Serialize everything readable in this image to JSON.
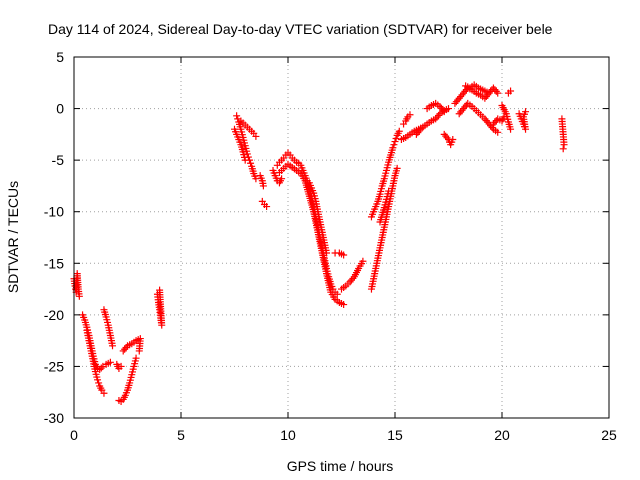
{
  "chart_data": {
    "type": "scatter",
    "title": "Day 114 of 2024, Sidereal Day-to-day VTEC variation (SDTVAR) for receiver bele",
    "xlabel": "GPS time / hours",
    "ylabel": "SDTVAR / TECUs",
    "xlim": [
      0,
      25
    ],
    "ylim": [
      -30,
      5
    ],
    "xticks": [
      0,
      5,
      10,
      15,
      20,
      25
    ],
    "yticks": [
      5,
      0,
      -5,
      -10,
      -15,
      -20,
      -25,
      -30
    ],
    "xtick_labels": [
      "0",
      "5",
      "10",
      "15",
      "20",
      "25"
    ],
    "ytick_labels": [
      "5",
      "0",
      "-5",
      "-10",
      "-15",
      "-20",
      "-25",
      "-30"
    ],
    "grid": true,
    "marker": "+",
    "color": "#ff0000",
    "series": [
      {
        "name": "SDTVAR",
        "segments": [
          [
            [
              0.0,
              -16.5
            ],
            [
              0.05,
              -17.2
            ],
            [
              0.1,
              -17.8
            ],
            [
              0.15,
              -16.0
            ],
            [
              0.2,
              -17.5
            ],
            [
              0.25,
              -18.2
            ]
          ],
          [
            [
              0.4,
              -20.0
            ],
            [
              0.5,
              -20.5
            ],
            [
              0.6,
              -21.2
            ],
            [
              0.7,
              -22.0
            ],
            [
              0.8,
              -23.0
            ],
            [
              0.9,
              -24.0
            ],
            [
              1.0,
              -24.8
            ],
            [
              1.1,
              -25.2
            ],
            [
              1.2,
              -25.3
            ],
            [
              1.35,
              -25.0
            ],
            [
              1.5,
              -24.8
            ],
            [
              1.7,
              -24.6
            ]
          ],
          [
            [
              0.6,
              -21.5
            ],
            [
              0.7,
              -22.5
            ],
            [
              0.8,
              -23.5
            ],
            [
              0.9,
              -24.5
            ],
            [
              1.0,
              -25.5
            ],
            [
              1.1,
              -26.3
            ],
            [
              1.2,
              -26.9
            ],
            [
              1.3,
              -27.3
            ],
            [
              1.4,
              -27.6
            ]
          ],
          [
            [
              1.4,
              -19.5
            ],
            [
              1.5,
              -20.2
            ],
            [
              1.6,
              -21.0
            ],
            [
              1.7,
              -22.0
            ],
            [
              1.8,
              -23.0
            ]
          ],
          [
            [
              2.0,
              -24.8
            ],
            [
              2.1,
              -25.2
            ],
            [
              2.2,
              -25.0
            ]
          ],
          [
            [
              2.1,
              -28.3
            ],
            [
              2.2,
              -28.4
            ],
            [
              2.3,
              -28.2
            ],
            [
              2.4,
              -27.8
            ],
            [
              2.5,
              -27.3
            ],
            [
              2.6,
              -26.6
            ],
            [
              2.7,
              -25.8
            ],
            [
              2.8,
              -25.0
            ],
            [
              2.9,
              -24.2
            ]
          ],
          [
            [
              2.3,
              -23.5
            ],
            [
              2.5,
              -23.0
            ],
            [
              2.7,
              -22.8
            ],
            [
              2.9,
              -22.5
            ],
            [
              3.1,
              -22.3
            ],
            [
              3.05,
              -23.5
            ]
          ],
          [
            [
              3.9,
              -18.0
            ],
            [
              3.95,
              -18.8
            ],
            [
              4.0,
              -19.5
            ],
            [
              4.05,
              -20.3
            ],
            [
              4.1,
              -21.0
            ],
            [
              4.0,
              -17.6
            ]
          ],
          [
            [
              7.6,
              -0.7
            ],
            [
              7.7,
              -1.3
            ],
            [
              7.8,
              -2.0
            ],
            [
              7.9,
              -2.8
            ],
            [
              8.0,
              -3.6
            ],
            [
              8.1,
              -4.4
            ],
            [
              8.2,
              -5.0
            ],
            [
              8.3,
              -5.6
            ],
            [
              8.4,
              -6.3
            ],
            [
              8.5,
              -6.8
            ]
          ],
          [
            [
              7.5,
              -2.0
            ],
            [
              7.6,
              -2.5
            ],
            [
              7.7,
              -3.0
            ],
            [
              7.8,
              -3.5
            ],
            [
              7.9,
              -4.2
            ],
            [
              8.0,
              -5.0
            ]
          ],
          [
            [
              7.8,
              -1.2
            ],
            [
              8.0,
              -1.6
            ],
            [
              8.2,
              -2.0
            ],
            [
              8.4,
              -2.4
            ],
            [
              8.5,
              -2.7
            ]
          ],
          [
            [
              8.7,
              -6.5
            ],
            [
              8.8,
              -7.0
            ],
            [
              8.85,
              -7.5
            ]
          ],
          [
            [
              8.8,
              -9.0
            ],
            [
              8.9,
              -9.3
            ],
            [
              9.0,
              -9.5
            ]
          ],
          [
            [
              9.3,
              -6.0
            ],
            [
              9.4,
              -6.5
            ],
            [
              9.5,
              -7.0
            ],
            [
              9.6,
              -7.2
            ],
            [
              9.7,
              -6.8
            ]
          ],
          [
            [
              9.5,
              -5.5
            ],
            [
              9.6,
              -5.2
            ],
            [
              9.7,
              -5.0
            ],
            [
              9.8,
              -4.8
            ],
            [
              9.9,
              -4.5
            ],
            [
              10.0,
              -4.3
            ],
            [
              10.1,
              -4.5
            ],
            [
              10.2,
              -4.8
            ],
            [
              10.3,
              -5.0
            ],
            [
              10.4,
              -5.2
            ],
            [
              10.5,
              -5.3
            ],
            [
              10.6,
              -5.5
            ],
            [
              10.7,
              -6.0
            ],
            [
              10.8,
              -6.5
            ],
            [
              10.9,
              -7.0
            ],
            [
              11.0,
              -7.8
            ],
            [
              11.1,
              -8.5
            ],
            [
              11.2,
              -9.5
            ],
            [
              11.3,
              -10.5
            ],
            [
              11.4,
              -11.5
            ],
            [
              11.5,
              -12.5
            ],
            [
              11.6,
              -13.5
            ],
            [
              11.7,
              -14.5
            ],
            [
              11.8,
              -15.5
            ],
            [
              11.9,
              -16.3
            ],
            [
              12.0,
              -17.0
            ],
            [
              12.1,
              -17.5
            ],
            [
              12.2,
              -17.8
            ],
            [
              12.3,
              -18.0
            ]
          ],
          [
            [
              9.6,
              -6.2
            ],
            [
              9.8,
              -5.8
            ],
            [
              10.0,
              -5.4
            ],
            [
              10.2,
              -5.7
            ],
            [
              10.4,
              -6.0
            ],
            [
              10.6,
              -6.3
            ],
            [
              10.8,
              -7.0
            ],
            [
              11.0,
              -8.5
            ],
            [
              11.2,
              -10.0
            ],
            [
              11.4,
              -12.0
            ],
            [
              11.6,
              -14.0
            ],
            [
              11.8,
              -16.0
            ],
            [
              12.0,
              -17.8
            ],
            [
              12.2,
              -18.5
            ],
            [
              12.4,
              -18.8
            ],
            [
              12.6,
              -19.0
            ]
          ],
          [
            [
              11.0,
              -7.2
            ],
            [
              11.1,
              -7.7
            ],
            [
              11.2,
              -8.2
            ],
            [
              11.3,
              -9.0
            ],
            [
              11.4,
              -10.0
            ],
            [
              11.5,
              -11.0
            ],
            [
              11.6,
              -12.0
            ],
            [
              11.7,
              -13.0
            ],
            [
              11.8,
              -14.0
            ]
          ],
          [
            [
              12.2,
              -14.0
            ],
            [
              12.4,
              -14.0
            ],
            [
              12.6,
              -14.2
            ]
          ],
          [
            [
              12.5,
              -17.5
            ],
            [
              12.7,
              -17.2
            ],
            [
              12.9,
              -16.8
            ],
            [
              13.1,
              -16.3
            ],
            [
              13.3,
              -15.5
            ],
            [
              13.5,
              -14.8
            ]
          ],
          [
            [
              13.9,
              -10.5
            ],
            [
              14.0,
              -10.0
            ],
            [
              14.1,
              -9.5
            ],
            [
              14.2,
              -9.0
            ],
            [
              14.3,
              -8.3
            ],
            [
              14.4,
              -7.5
            ],
            [
              14.5,
              -6.8
            ],
            [
              14.6,
              -6.0
            ],
            [
              14.7,
              -5.2
            ],
            [
              14.8,
              -4.5
            ],
            [
              14.9,
              -3.8
            ],
            [
              15.0,
              -3.2
            ],
            [
              15.1,
              -2.6
            ],
            [
              15.2,
              -2.2
            ]
          ],
          [
            [
              13.9,
              -17.5
            ],
            [
              14.0,
              -16.5
            ],
            [
              14.1,
              -15.5
            ],
            [
              14.2,
              -14.5
            ],
            [
              14.3,
              -13.5
            ],
            [
              14.4,
              -12.5
            ],
            [
              14.5,
              -11.5
            ],
            [
              14.6,
              -10.5
            ],
            [
              14.7,
              -9.5
            ],
            [
              14.8,
              -8.5
            ],
            [
              14.9,
              -7.5
            ],
            [
              15.0,
              -6.5
            ],
            [
              15.1,
              -5.8
            ]
          ],
          [
            [
              14.3,
              -11.0
            ],
            [
              14.4,
              -10.3
            ],
            [
              14.5,
              -9.6
            ],
            [
              14.6,
              -8.8
            ],
            [
              14.7,
              -8.0
            ]
          ],
          [
            [
              15.4,
              -1.5
            ],
            [
              15.5,
              -1.2
            ],
            [
              15.6,
              -0.8
            ],
            [
              15.7,
              -0.6
            ]
          ],
          [
            [
              15.3,
              -3.0
            ],
            [
              15.5,
              -2.8
            ],
            [
              15.7,
              -2.5
            ],
            [
              15.9,
              -2.2
            ],
            [
              16.1,
              -2.0
            ],
            [
              16.3,
              -1.8
            ],
            [
              16.5,
              -1.5
            ],
            [
              16.7,
              -1.2
            ],
            [
              16.9,
              -1.0
            ],
            [
              17.1,
              -0.5
            ],
            [
              17.3,
              -0.2
            ],
            [
              17.5,
              0.0
            ]
          ],
          [
            [
              16.5,
              0.0
            ],
            [
              16.7,
              0.3
            ],
            [
              16.9,
              0.5
            ],
            [
              17.1,
              0.2
            ],
            [
              17.3,
              -0.3
            ]
          ],
          [
            [
              17.3,
              -2.5
            ],
            [
              17.5,
              -3.0
            ],
            [
              17.6,
              -3.5
            ],
            [
              17.7,
              -3.0
            ]
          ],
          [
            [
              16.0,
              -2.5
            ],
            [
              16.2,
              -2.0
            ]
          ],
          [
            [
              17.8,
              0.5
            ],
            [
              18.0,
              1.0
            ],
            [
              18.2,
              1.5
            ],
            [
              18.4,
              2.0
            ],
            [
              18.6,
              1.8
            ],
            [
              18.8,
              1.5
            ],
            [
              19.0,
              1.3
            ],
            [
              19.2,
              1.0
            ],
            [
              19.4,
              1.5
            ],
            [
              19.6,
              2.0
            ],
            [
              19.8,
              1.5
            ]
          ],
          [
            [
              18.0,
              -0.5
            ],
            [
              18.2,
              0.0
            ],
            [
              18.4,
              0.5
            ],
            [
              18.6,
              0.2
            ],
            [
              18.8,
              -0.2
            ],
            [
              19.0,
              -0.6
            ],
            [
              19.2,
              -1.0
            ],
            [
              19.4,
              -1.5
            ],
            [
              19.6,
              -2.0
            ],
            [
              19.8,
              -2.3
            ]
          ],
          [
            [
              18.3,
              2.2
            ],
            [
              18.5,
              2.0
            ],
            [
              18.7,
              2.3
            ],
            [
              18.9,
              2.0
            ],
            [
              19.1,
              1.8
            ],
            [
              19.3,
              1.6
            ]
          ],
          [
            [
              19.6,
              -1.5
            ],
            [
              19.8,
              -1.0
            ],
            [
              20.0,
              -1.2
            ],
            [
              20.1,
              -0.8
            ]
          ],
          [
            [
              20.0,
              0.3
            ],
            [
              20.2,
              -0.5
            ],
            [
              20.3,
              -1.3
            ],
            [
              20.4,
              -2.0
            ]
          ],
          [
            [
              20.3,
              1.5
            ],
            [
              20.4,
              1.7
            ]
          ],
          [
            [
              20.8,
              -0.5
            ],
            [
              20.9,
              -1.0
            ],
            [
              21.0,
              -1.5
            ],
            [
              21.1,
              -2.0
            ],
            [
              21.0,
              -0.8
            ],
            [
              21.1,
              -0.3
            ]
          ],
          [
            [
              22.8,
              -1.0
            ],
            [
              22.82,
              -1.5
            ],
            [
              22.84,
              -2.0
            ],
            [
              22.86,
              -2.5
            ],
            [
              22.88,
              -3.0
            ],
            [
              22.9,
              -3.5
            ],
            [
              22.86,
              -3.9
            ]
          ]
        ]
      }
    ]
  }
}
